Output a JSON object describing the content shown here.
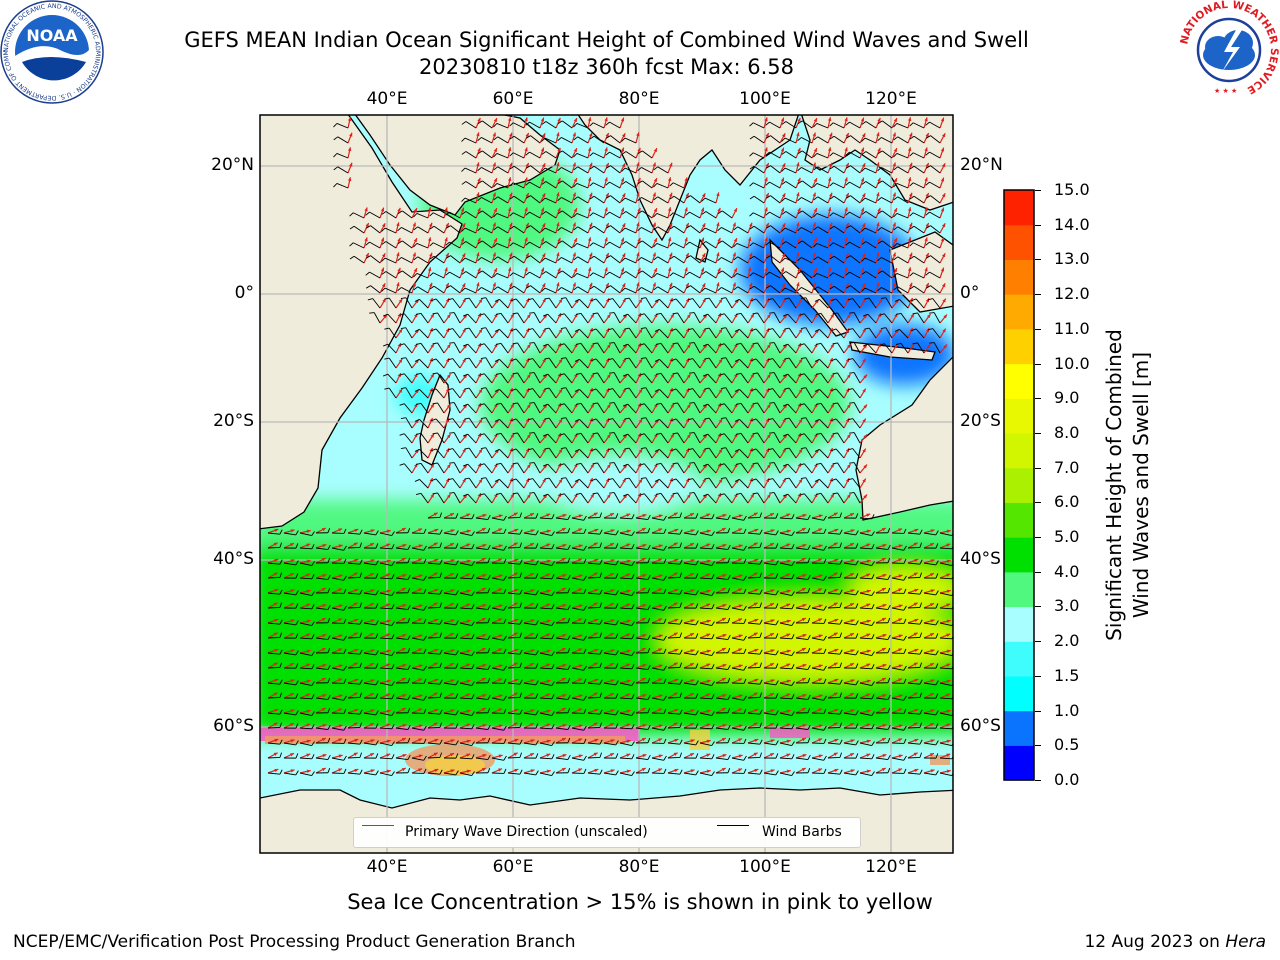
{
  "title_line1": "GEFS MEAN Indian Ocean Significant Height of Combined Wind Waves and Swell",
  "title_line2": "20230810 t18z 360h fcst   Max: 6.58",
  "lon_ticks": [
    "40°E",
    "60°E",
    "80°E",
    "100°E",
    "120°E"
  ],
  "lat_ticks": [
    "20°N",
    "0°",
    "20°S",
    "40°S",
    "60°S"
  ],
  "map": {
    "lon_range": [
      20,
      130
    ],
    "lat_range": [
      -75,
      28
    ],
    "projection": "cylindrical",
    "grid": true,
    "land_color": "#efecdc",
    "ice_colors": [
      "#ff55cc",
      "#f09a60",
      "#f5d040"
    ],
    "wave_arrow_color": "#e0221a",
    "wind_barb_color": "#000000"
  },
  "colorbar": {
    "label": "Significant Height of Combined Wind Waves and Swell [m]",
    "label_line1": "Significant Height of Combined",
    "label_line2": "Wind Waves and Swell [m]",
    "range": [
      0,
      15
    ],
    "ticks": [
      "0.0",
      "0.5",
      "1.0",
      "1.5",
      "2.0",
      "3.0",
      "4.0",
      "5.0",
      "6.0",
      "7.0",
      "8.0",
      "9.0",
      "10.0",
      "11.0",
      "12.0",
      "13.0",
      "14.0",
      "15.0"
    ],
    "colors": [
      "#0000ff",
      "#0a74ff",
      "#00ffff",
      "#40fdfd",
      "#a8fefe",
      "#50f880",
      "#00e000",
      "#55e600",
      "#aaf000",
      "#d2f500",
      "#e8f800",
      "#ffff00",
      "#ffd000",
      "#ffaa00",
      "#ff8000",
      "#ff5200",
      "#ff2200"
    ]
  },
  "legend": {
    "wave_label": "Primary Wave Direction (unscaled)",
    "wind_label": "Wind Barbs"
  },
  "caption": "Sea Ice Concentration > 15% is shown in pink to yellow",
  "footer_left": "NCEP/EMC/Verification Post Processing Product Generation Branch",
  "footer_right_date": "12 Aug 2023 on ",
  "footer_right_host": "Hera",
  "logos": {
    "left": "NOAA",
    "left_ring": "NATIONAL OCEANIC AND ATMOSPHERIC ADMINISTRATION · U.S. DEPARTMENT OF COMMERCE ·",
    "right_ring": "NATIONAL WEATHER SERVICE"
  }
}
